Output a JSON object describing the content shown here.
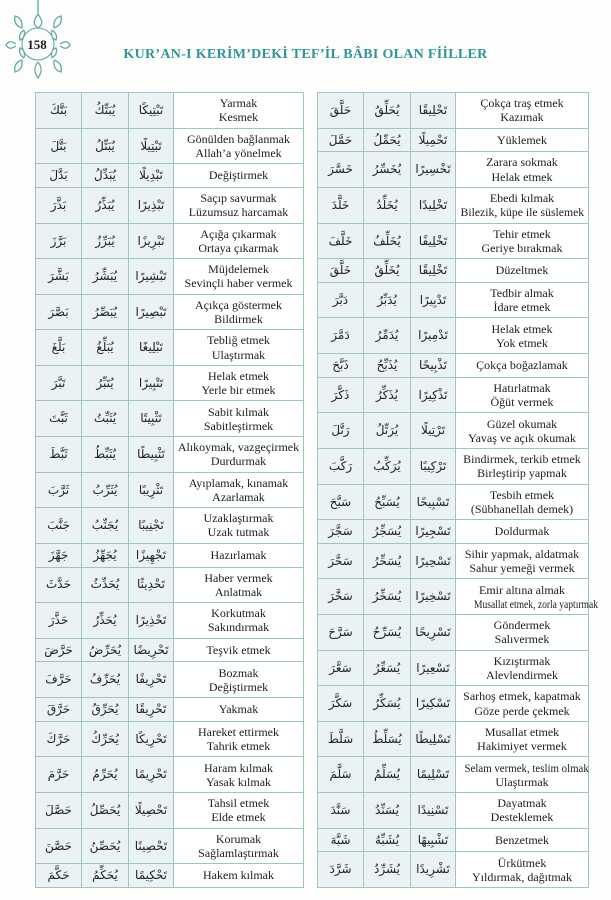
{
  "page": {
    "number": "158",
    "title": "KUR’AN-I KERİM’DEKİ TEF’İL BÂBI OLAN FİİLLER"
  },
  "colors": {
    "accent_teal": "#2e9598",
    "ornament_teal": "#5fa9a6",
    "table_border": "#9ec5c5",
    "arabic_cell_bg": "#eaf2f4",
    "text": "#1d1d1d"
  },
  "columns": [
    "mazi",
    "muzari",
    "masdar",
    "anlam"
  ],
  "tables": [
    {
      "side": "left",
      "rows": [
        {
          "past": "بَتَّكَ",
          "present": "يُبَتِّكُ",
          "masdar": "تَبْتِيكًا",
          "meaning": [
            "Yarmak",
            "Kesmek"
          ]
        },
        {
          "past": "بَتَّلَ",
          "present": "يُبَتِّلُ",
          "masdar": "تَبْتِيلًا",
          "meaning": [
            "Gönülden bağlanmak",
            "Allah’a yönelmek"
          ]
        },
        {
          "past": "بَدَّلَ",
          "present": "يُبَدِّلُ",
          "masdar": "تَبْدِيلًا",
          "meaning": [
            "Değiştirmek"
          ]
        },
        {
          "past": "بَذَّرَ",
          "present": "يُبَذِّرُ",
          "masdar": "تَبْذِيرًا",
          "meaning": [
            "Saçıp savurmak",
            "Lüzumsuz harcamak"
          ]
        },
        {
          "past": "بَرَّزَ",
          "present": "يُبَرِّزُ",
          "masdar": "تَبْرِيزًا",
          "meaning": [
            "Açığa çıkarmak",
            "Ortaya çıkarmak"
          ]
        },
        {
          "past": "بَشَّرَ",
          "present": "يُبَشِّرُ",
          "masdar": "تَبْشِيرًا",
          "meaning": [
            "Müjdelemek",
            "Sevinçli haber vermek"
          ]
        },
        {
          "past": "بَصَّرَ",
          "present": "يُبَصِّرُ",
          "masdar": "تَبْصِيرًا",
          "meaning": [
            "Açıkça göstermek",
            "Bildirmek"
          ]
        },
        {
          "past": "بَلَّغَ",
          "present": "يُبَلِّغُ",
          "masdar": "تَبْلِيغًا",
          "meaning": [
            "Tebliğ etmek",
            "Ulaştırmak"
          ]
        },
        {
          "past": "تَبَّرَ",
          "present": "يُتَبِّرُ",
          "masdar": "تَتْبِيرًا",
          "meaning": [
            "Helak etmek",
            "Yerle bir etmek"
          ]
        },
        {
          "past": "ثَبَّتَ",
          "present": "يُثَبِّتُ",
          "masdar": "تَثْبِيتًا",
          "meaning": [
            "Sabit kılmak",
            "Sabitleştirmek"
          ]
        },
        {
          "past": "ثَبَّطَ",
          "present": "يُثَبِّطُ",
          "masdar": "تَثْبِيطًا",
          "meaning": [
            "Alıkoymak, vazgeçirmek",
            "Durdurmak"
          ]
        },
        {
          "past": "ثَرَّبَ",
          "present": "يُثَرِّبُ",
          "masdar": "تَثْرِيبًا",
          "meaning": [
            "Ayıplamak, kınamak",
            "Azarlamak"
          ]
        },
        {
          "past": "جَنَّبَ",
          "present": "يُجَنِّبُ",
          "masdar": "تَجْنِيبًا",
          "meaning": [
            "Uzaklaştırmak",
            "Uzak tutmak"
          ]
        },
        {
          "past": "جَهَّزَ",
          "present": "يُجَهِّزُ",
          "masdar": "تَجْهِيزًا",
          "meaning": [
            "Hazırlamak"
          ]
        },
        {
          "past": "حَدَّثَ",
          "present": "يُحَدِّثُ",
          "masdar": "تَحْدِيثًا",
          "meaning": [
            "Haber vermek",
            "Anlatmak"
          ]
        },
        {
          "past": "حَذَّرَ",
          "present": "يُحَذِّرُ",
          "masdar": "تَحْذِيرًا",
          "meaning": [
            "Korkutmak",
            "Sakındırmak"
          ]
        },
        {
          "past": "حَرَّضَ",
          "present": "يُحَرِّضُ",
          "masdar": "تَحْرِيضًا",
          "meaning": [
            "Teşvik etmek"
          ]
        },
        {
          "past": "حَرَّفَ",
          "present": "يُحَرِّفُ",
          "masdar": "تَحْرِيفًا",
          "meaning": [
            "Bozmak",
            "Değiştirmek"
          ]
        },
        {
          "past": "حَرَّقَ",
          "present": "يُحَرِّقُ",
          "masdar": "تَحْرِيقًا",
          "meaning": [
            "Yakmak"
          ]
        },
        {
          "past": "حَرَّكَ",
          "present": "يُحَرِّكُ",
          "masdar": "تَحْرِيكًا",
          "meaning": [
            "Hareket ettirmek",
            "Tahrik etmek"
          ]
        },
        {
          "past": "حَرَّمَ",
          "present": "يُحَرِّمُ",
          "masdar": "تَحْرِيمًا",
          "meaning": [
            "Haram kılmak",
            "Yasak kılmak"
          ]
        },
        {
          "past": "حَصَّلَ",
          "present": "يُحَصِّلُ",
          "masdar": "تَحْصِيلًا",
          "meaning": [
            "Tahsil etmek",
            "Elde etmek"
          ]
        },
        {
          "past": "حَصَّنَ",
          "present": "يُحَصِّنُ",
          "masdar": "تَحْصِينًا",
          "meaning": [
            "Korumak",
            "Sağlamlaştırmak"
          ]
        },
        {
          "past": "حَكَّمَ",
          "present": "يُحَكِّمُ",
          "masdar": "تَحْكِيمًا",
          "meaning": [
            "Hakem kılmak"
          ]
        }
      ]
    },
    {
      "side": "right",
      "rows": [
        {
          "past": "حَلَّقَ",
          "present": "يُحَلِّقُ",
          "masdar": "تَحْلِيقًا",
          "meaning": [
            "Çokça traş etmek",
            "Kazımak"
          ]
        },
        {
          "past": "حَمَّلَ",
          "present": "يُحَمِّلُ",
          "masdar": "تَحْمِيلًا",
          "meaning": [
            "Yüklemek"
          ]
        },
        {
          "past": "خَسَّرَ",
          "present": "يُخَسِّرُ",
          "masdar": "تَخْسِيرًا",
          "meaning": [
            "Zarara sokmak",
            "Helak etmek"
          ]
        },
        {
          "past": "خَلَّدَ",
          "present": "يُخَلِّدُ",
          "masdar": "تَخْلِيدًا",
          "meaning": [
            "Ebedi kılmak",
            "Bilezik, küpe ile süslemek"
          ]
        },
        {
          "past": "خَلَّفَ",
          "present": "يُخَلِّفُ",
          "masdar": "تَخْلِيفًا",
          "meaning": [
            "Tehir etmek",
            "Geriye bırakmak"
          ]
        },
        {
          "past": "خَلَّقَ",
          "present": "يُخَلِّقُ",
          "masdar": "تَخْلِيقًا",
          "meaning": [
            "Düzeltmek"
          ]
        },
        {
          "past": "دَبَّرَ",
          "present": "يُدَبِّرُ",
          "masdar": "تَدْبِيرًا",
          "meaning": [
            "Tedbir almak",
            "İdare etmek"
          ]
        },
        {
          "past": "دَمَّرَ",
          "present": "يُدَمِّرُ",
          "masdar": "تَدْمِيرًا",
          "meaning": [
            "Helak etmek",
            "Yok etmek"
          ]
        },
        {
          "past": "ذَبَّحَ",
          "present": "يُذَبِّحُ",
          "masdar": "تَذْبِيحًا",
          "meaning": [
            "Çokça boğazlamak"
          ]
        },
        {
          "past": "ذَكَّرَ",
          "present": "يُذَكِّرُ",
          "masdar": "تَذْكِيرًا",
          "meaning": [
            "Hatırlatmak",
            "Öğüt vermek"
          ]
        },
        {
          "past": "رَتَّلَ",
          "present": "يُرَتِّلُ",
          "masdar": "تَرْتِيلًا",
          "meaning": [
            "Güzel okumak",
            "Yavaş ve açık okumak"
          ]
        },
        {
          "past": "رَكَّبَ",
          "present": "يُرَكِّبُ",
          "masdar": "تَرْكِيبًا",
          "meaning": [
            "Bindirmek, terkib etmek",
            "Birleştirip yapmak"
          ]
        },
        {
          "past": "سَبَّحَ",
          "present": "يُسَبِّحُ",
          "masdar": "تَسْبِيحًا",
          "meaning": [
            "Tesbih etmek",
            "(Sübhanellah demek)"
          ]
        },
        {
          "past": "سَجَّرَ",
          "present": "يُسَجِّرُ",
          "masdar": "تَسْجِيرًا",
          "meaning": [
            "Doldurmak"
          ]
        },
        {
          "past": "سَحَّرَ",
          "present": "يُسَحِّرُ",
          "masdar": "تَسْحِيرًا",
          "meaning": [
            "Sihir yapmak, aldatmak",
            "Sahur yemeği vermek"
          ]
        },
        {
          "past": "سَخَّرَ",
          "present": "يُسَخِّرُ",
          "masdar": "تَسْخِيرًا",
          "meaning": [
            "Emir altına almak",
            "Musallat etmek, zorla yaptırmak"
          ]
        },
        {
          "past": "سَرَّحَ",
          "present": "يُسَرِّحُ",
          "masdar": "تَسْرِيحًا",
          "meaning": [
            "Göndermek",
            "Salıvermek"
          ]
        },
        {
          "past": "سَعَّرَ",
          "present": "يُسَعِّرُ",
          "masdar": "تَسْعِيرًا",
          "meaning": [
            "Kızıştırmak",
            "Alevlendirmek"
          ]
        },
        {
          "past": "سَكَّرَ",
          "present": "يُسَكِّرُ",
          "masdar": "تَسْكِيرًا",
          "meaning": [
            "Sarhoş etmek, kapatmak",
            "Göze perde çekmek"
          ]
        },
        {
          "past": "سَلَّطَ",
          "present": "يُسَلِّطُ",
          "masdar": "تَسْلِيطًا",
          "meaning": [
            "Musallat etmek",
            "Hakimiyet vermek"
          ]
        },
        {
          "past": "سَلَّمَ",
          "present": "يُسَلِّمُ",
          "masdar": "تَسْلِيمًا",
          "meaning": [
            "Selam vermek, teslim olmak",
            "Ulaştırmak"
          ]
        },
        {
          "past": "سَنَّدَ",
          "present": "يُسَنِّدُ",
          "masdar": "تَسْنِيدًا",
          "meaning": [
            "Dayatmak",
            "Desteklemek"
          ]
        },
        {
          "past": "شَبَّهَ",
          "present": "يُشَبِّهُ",
          "masdar": "تَشْبِيهًا",
          "meaning": [
            "Benzetmek"
          ]
        },
        {
          "past": "شَرَّدَ",
          "present": "يُشَرِّدُ",
          "masdar": "تَشْرِيدًا",
          "meaning": [
            "Ürkütmek",
            "Yıldırmak, dağıtmak"
          ]
        }
      ]
    }
  ]
}
